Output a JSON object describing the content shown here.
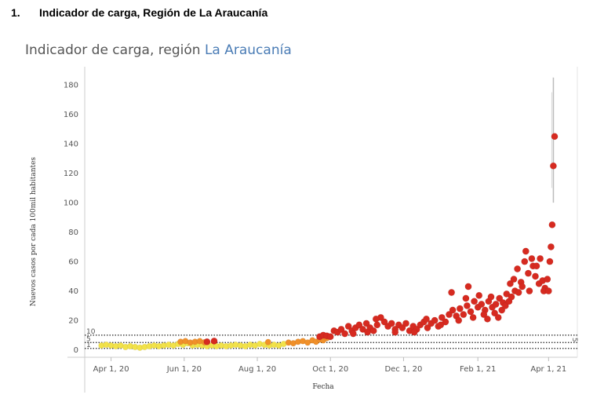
{
  "heading": {
    "number": "1.",
    "text": "Indicador de carga, Región de La Araucanía"
  },
  "chart_data": {
    "type": "scatter",
    "title_prefix": "Indicador de carga, región",
    "title_highlight": "La Araucanía",
    "xlabel": "Fecha",
    "ylabel": "Nuevos casos por cada 100mil habitantes",
    "x_range": [
      "2020-03-10",
      "2021-04-25"
    ],
    "ylim": [
      -5,
      187
    ],
    "y_ticks": [
      0,
      20,
      40,
      60,
      80,
      100,
      120,
      140,
      160,
      180
    ],
    "x_ticks": [
      {
        "date": "2020-04-01",
        "label": "Apr 1, 20"
      },
      {
        "date": "2020-06-01",
        "label": "Jun 1, 20"
      },
      {
        "date": "2020-08-01",
        "label": "Aug 1, 20"
      },
      {
        "date": "2020-10-01",
        "label": "Oct 1, 20"
      },
      {
        "date": "2020-12-01",
        "label": "Dec 1, 20"
      },
      {
        "date": "2021-02-01",
        "label": "Feb 1, 21"
      },
      {
        "date": "2021-04-01",
        "label": "Apr 1, 21"
      }
    ],
    "reference_lines": [
      {
        "value": 10,
        "label": "10",
        "right_label": "5"
      },
      {
        "value": 5,
        "label": "5",
        "right_label": ""
      },
      {
        "value": 1,
        "label": "1",
        "right_label": ""
      }
    ],
    "colors": {
      "low": "#f2e24a",
      "mid": "#f0902a",
      "high": "#d62a20",
      "band": "#bbbbbb"
    },
    "series": [
      {
        "name": "",
        "color": "#f2e24a",
        "points": [
          [
            "2020-03-24",
            3
          ],
          [
            "2020-03-28",
            3.5
          ],
          [
            "2020-04-01",
            3
          ],
          [
            "2020-04-05",
            2.5
          ],
          [
            "2020-04-09",
            3
          ],
          [
            "2020-04-13",
            2
          ],
          [
            "2020-04-17",
            2.5
          ],
          [
            "2020-04-21",
            2
          ],
          [
            "2020-04-25",
            1.5
          ],
          [
            "2020-04-29",
            2
          ],
          [
            "2020-05-03",
            2.5
          ],
          [
            "2020-05-07",
            3
          ],
          [
            "2020-05-11",
            2.5
          ],
          [
            "2020-05-15",
            3
          ],
          [
            "2020-05-19",
            3.5
          ],
          [
            "2020-05-23",
            3
          ],
          [
            "2020-05-27",
            4
          ],
          [
            "2020-05-31",
            3.5
          ],
          [
            "2020-06-04",
            4.5
          ],
          [
            "2020-06-08",
            3
          ],
          [
            "2020-06-12",
            3.5
          ],
          [
            "2020-06-16",
            3
          ],
          [
            "2020-06-20",
            2.5
          ],
          [
            "2020-06-24",
            3
          ],
          [
            "2020-06-28",
            2.5
          ],
          [
            "2020-07-02",
            3
          ],
          [
            "2020-07-06",
            2.5
          ],
          [
            "2020-07-10",
            3
          ],
          [
            "2020-07-14",
            3.5
          ],
          [
            "2020-07-18",
            3
          ],
          [
            "2020-07-22",
            2.5
          ],
          [
            "2020-07-26",
            3.5
          ],
          [
            "2020-07-30",
            3
          ],
          [
            "2020-08-03",
            4
          ],
          [
            "2020-08-07",
            3.5
          ],
          [
            "2020-08-11",
            3
          ],
          [
            "2020-08-15",
            3.5
          ],
          [
            "2020-08-19",
            3
          ],
          [
            "2020-08-23",
            4
          ]
        ]
      },
      {
        "name": "",
        "color": "#f0902a",
        "points": [
          [
            "2020-05-29",
            5.5
          ],
          [
            "2020-06-02",
            6
          ],
          [
            "2020-06-06",
            5
          ],
          [
            "2020-06-10",
            5.5
          ],
          [
            "2020-06-14",
            6
          ],
          [
            "2020-06-18",
            5.2
          ],
          [
            "2020-08-10",
            5.3
          ],
          [
            "2020-08-27",
            5
          ],
          [
            "2020-08-31",
            4.5
          ],
          [
            "2020-09-04",
            5.5
          ],
          [
            "2020-09-08",
            6
          ],
          [
            "2020-09-12",
            5
          ],
          [
            "2020-09-16",
            6.5
          ],
          [
            "2020-09-19",
            5.5
          ],
          [
            "2020-09-22",
            7
          ],
          [
            "2020-09-25",
            6.5
          ],
          [
            "2020-09-28",
            8
          ]
        ]
      },
      {
        "name": "",
        "color": "#d62a20",
        "points": [
          [
            "2020-06-20",
            5.5
          ],
          [
            "2020-06-26",
            6
          ],
          [
            "2020-09-22",
            9
          ],
          [
            "2020-09-25",
            10
          ],
          [
            "2020-09-28",
            9.5
          ],
          [
            "2020-10-01",
            9
          ],
          [
            "2020-10-04",
            13
          ],
          [
            "2020-10-07",
            12
          ],
          [
            "2020-10-10",
            14
          ],
          [
            "2020-10-13",
            11
          ],
          [
            "2020-10-16",
            16
          ],
          [
            "2020-10-19",
            13
          ],
          [
            "2020-10-22",
            15
          ],
          [
            "2020-10-25",
            17
          ],
          [
            "2020-10-28",
            14
          ],
          [
            "2020-10-31",
            18
          ],
          [
            "2020-11-03",
            15
          ],
          [
            "2020-11-06",
            13
          ],
          [
            "2020-11-09",
            17
          ],
          [
            "2020-11-12",
            22
          ],
          [
            "2020-11-15",
            19
          ],
          [
            "2020-11-18",
            16
          ],
          [
            "2020-11-21",
            18
          ],
          [
            "2020-11-24",
            14
          ],
          [
            "2020-11-27",
            17
          ],
          [
            "2020-11-30",
            15
          ],
          [
            "2020-12-03",
            18
          ],
          [
            "2020-12-06",
            13
          ],
          [
            "2020-12-09",
            16
          ],
          [
            "2020-12-12",
            14
          ],
          [
            "2020-12-15",
            17
          ],
          [
            "2020-12-18",
            19
          ],
          [
            "2020-12-21",
            15
          ],
          [
            "2020-12-24",
            18
          ],
          [
            "2020-12-27",
            20
          ],
          [
            "2020-12-30",
            16
          ],
          [
            "2021-01-02",
            22
          ],
          [
            "2021-01-05",
            19
          ],
          [
            "2021-01-08",
            24
          ],
          [
            "2021-01-11",
            27
          ],
          [
            "2021-01-14",
            23
          ],
          [
            "2021-01-17",
            28
          ],
          [
            "2021-01-20",
            24
          ],
          [
            "2021-01-23",
            30
          ],
          [
            "2021-01-26",
            26
          ],
          [
            "2021-01-29",
            33
          ],
          [
            "2021-02-01",
            29
          ],
          [
            "2021-02-04",
            31
          ],
          [
            "2021-02-07",
            27
          ],
          [
            "2021-02-10",
            33
          ],
          [
            "2021-02-13",
            29
          ],
          [
            "2021-02-16",
            31
          ],
          [
            "2021-02-19",
            35
          ],
          [
            "2021-02-22",
            32
          ],
          [
            "2021-02-25",
            38
          ],
          [
            "2021-02-28",
            45
          ],
          [
            "2021-03-03",
            48
          ],
          [
            "2021-03-06",
            55
          ],
          [
            "2021-03-09",
            46
          ],
          [
            "2021-03-12",
            60
          ],
          [
            "2021-03-15",
            52
          ],
          [
            "2021-03-18",
            62
          ],
          [
            "2021-03-21",
            50
          ],
          [
            "2021-03-24",
            45
          ],
          [
            "2021-03-27",
            47
          ],
          [
            "2021-03-29",
            42
          ],
          [
            "2021-03-31",
            48
          ],
          [
            "2021-04-02",
            60
          ],
          [
            "2021-04-03",
            70
          ],
          [
            "2021-04-04",
            85
          ],
          [
            "2021-04-05",
            125
          ],
          [
            "2021-04-06",
            145
          ],
          [
            "2020-10-20",
            11
          ],
          [
            "2020-11-01",
            12
          ],
          [
            "2020-11-08",
            21
          ],
          [
            "2020-11-24",
            12
          ],
          [
            "2020-12-10",
            12
          ],
          [
            "2020-12-20",
            21
          ],
          [
            "2021-01-01",
            17
          ],
          [
            "2021-01-10",
            39
          ],
          [
            "2021-01-16",
            20
          ],
          [
            "2021-01-22",
            35
          ],
          [
            "2021-01-24",
            43
          ],
          [
            "2021-01-28",
            22
          ],
          [
            "2021-02-02",
            37
          ],
          [
            "2021-02-06",
            24
          ],
          [
            "2021-02-09",
            21
          ],
          [
            "2021-02-12",
            36
          ],
          [
            "2021-02-15",
            25
          ],
          [
            "2021-02-18",
            22
          ],
          [
            "2021-02-21",
            27
          ],
          [
            "2021-02-24",
            30
          ],
          [
            "2021-02-27",
            33
          ],
          [
            "2021-03-01",
            36
          ],
          [
            "2021-03-04",
            40
          ],
          [
            "2021-03-07",
            39
          ],
          [
            "2021-03-10",
            43
          ],
          [
            "2021-03-13",
            67
          ],
          [
            "2021-03-16",
            40
          ],
          [
            "2021-03-19",
            57
          ],
          [
            "2021-03-22",
            57
          ],
          [
            "2021-03-25",
            62
          ],
          [
            "2021-03-28",
            40
          ],
          [
            "2021-04-01",
            40
          ]
        ]
      }
    ]
  }
}
